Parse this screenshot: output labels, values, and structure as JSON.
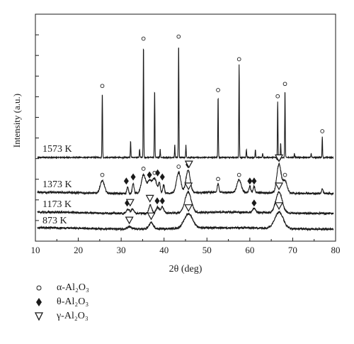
{
  "chart_data": {
    "type": "line",
    "xlabel": "2θ (deg)",
    "ylabel": "Intensity (a.u.)",
    "xlim": [
      10,
      80
    ],
    "xticks": [
      10,
      20,
      30,
      40,
      50,
      60,
      70,
      80
    ],
    "y_ticks_labeled": false,
    "grid": false,
    "legend_position": "bottom-left",
    "series": [
      {
        "name": "1573 K",
        "baseline": 7,
        "peaks": [
          [
            25.6,
            32
          ],
          [
            32.2,
            8
          ],
          [
            34.3,
            4
          ],
          [
            35.2,
            55
          ],
          [
            37.8,
            33
          ],
          [
            39.1,
            4
          ],
          [
            42.5,
            6
          ],
          [
            43.4,
            56
          ],
          [
            45.1,
            6
          ],
          [
            52.6,
            30
          ],
          [
            57.5,
            45
          ],
          [
            59.2,
            4
          ],
          [
            61.3,
            4
          ],
          [
            63.0,
            2
          ],
          [
            66.5,
            27
          ],
          [
            67.2,
            7
          ],
          [
            68.2,
            33
          ],
          [
            70.4,
            2
          ],
          [
            74.3,
            2
          ],
          [
            76.9,
            10
          ]
        ],
        "markers": [
          {
            "phase": "alpha",
            "x": [
              25.6,
              35.2,
              43.4,
              52.6,
              57.5,
              66.5,
              68.2,
              76.9
            ]
          }
        ]
      },
      {
        "name": "1373 K",
        "baseline": 5,
        "peaks": [
          [
            25.6,
            6
          ],
          [
            31.5,
            3
          ],
          [
            32.8,
            5
          ],
          [
            35.2,
            9
          ],
          [
            36.6,
            6
          ],
          [
            37.8,
            7
          ],
          [
            38.9,
            5
          ],
          [
            39.9,
            4
          ],
          [
            43.4,
            10
          ],
          [
            45.6,
            11
          ],
          [
            52.6,
            4
          ],
          [
            57.5,
            6
          ],
          [
            60.0,
            3
          ],
          [
            61.0,
            3
          ],
          [
            66.8,
            14
          ],
          [
            68.2,
            6
          ],
          [
            76.9,
            2
          ]
        ],
        "markers": [
          {
            "phase": "alpha",
            "x": [
              25.6,
              35.2,
              37.8,
              43.4,
              52.6,
              57.5,
              66.6,
              68.2
            ]
          },
          {
            "phase": "theta",
            "x": [
              31.2,
              32.8,
              36.6,
              38.5,
              39.6,
              45.6,
              60.0,
              61.0,
              66.8
            ]
          },
          {
            "phase": "gamma",
            "x": [
              45.8,
              66.8
            ]
          }
        ]
      },
      {
        "name": "1173 K",
        "baseline": 3,
        "peaks": [
          [
            31.6,
            2
          ],
          [
            32.7,
            2
          ],
          [
            36.8,
            4
          ],
          [
            38.5,
            3
          ],
          [
            39.6,
            3
          ],
          [
            45.6,
            10
          ],
          [
            61.0,
            2
          ],
          [
            66.8,
            10
          ]
        ],
        "markers": [
          {
            "phase": "theta",
            "x": [
              31.4,
              38.4,
              39.6,
              61.0
            ]
          },
          {
            "phase": "gamma",
            "x": [
              32.1,
              36.7,
              45.7,
              66.8
            ]
          }
        ]
      },
      {
        "name": "873 K",
        "baseline": 2,
        "peaks": [
          [
            31.9,
            1
          ],
          [
            37.0,
            3
          ],
          [
            45.7,
            7
          ],
          [
            66.8,
            8
          ]
        ],
        "markers": [
          {
            "phase": "gamma",
            "x": [
              31.9,
              37.0,
              45.7,
              66.8
            ]
          }
        ]
      }
    ],
    "legend": [
      {
        "phase": "alpha",
        "label": "α-Al₂O₃"
      },
      {
        "phase": "theta",
        "label": "θ-Al₂O₃"
      },
      {
        "phase": "gamma",
        "label": "γ-Al₂O₃"
      }
    ]
  }
}
